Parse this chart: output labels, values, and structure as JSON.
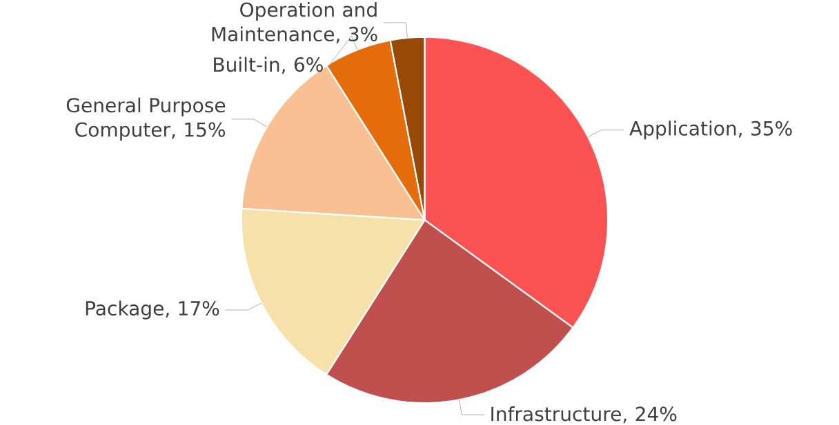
{
  "chart_data": {
    "type": "pie",
    "categories": [
      "Application",
      "Infrastructure",
      "Package",
      "General Purpose Computer",
      "Built-in",
      "Operation and Maintenance"
    ],
    "values": [
      35,
      24,
      17,
      15,
      6,
      3
    ],
    "colors": [
      "#fd5252",
      "#c0504d",
      "#f6e1ab",
      "#f9c093",
      "#e46c0a",
      "#984807"
    ],
    "value_labels": [
      ", 35%",
      ", 24%",
      ", 17%",
      ", 15%",
      ", 6%",
      ", 3%"
    ]
  }
}
